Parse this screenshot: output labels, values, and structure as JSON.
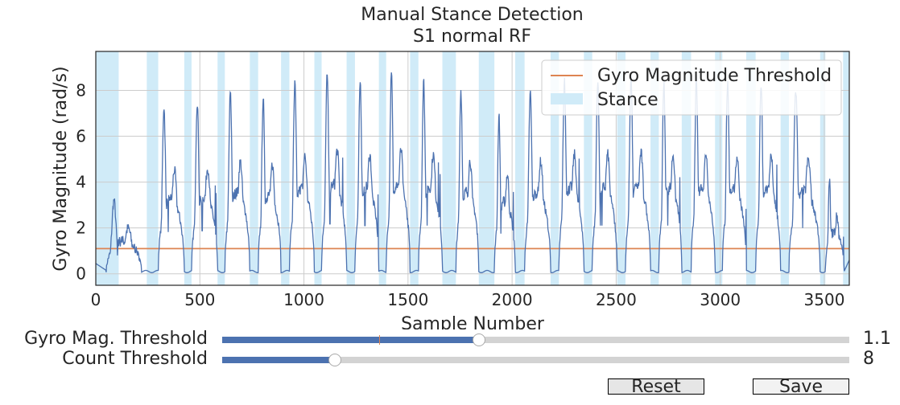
{
  "figure": {
    "title": "Manual Stance Detection",
    "subtitle": "S1  normal  RF"
  },
  "chart_data": {
    "type": "line",
    "xlabel": "Sample Number",
    "ylabel": "Gyro Magnitude (rad/s)",
    "xlim": [
      0,
      3620
    ],
    "ylim": [
      -0.5,
      9.7
    ],
    "xticks": [
      0,
      500,
      1000,
      1500,
      2000,
      2500,
      3000,
      3500
    ],
    "yticks": [
      0,
      2,
      4,
      6,
      8
    ],
    "grid": true,
    "legend": {
      "placement": "top-right",
      "entries": [
        "Gyro Magnitude Threshold",
        "Stance"
      ]
    },
    "colors": {
      "line": "#4c72b0",
      "threshold": "#dd8452",
      "stance": "#d0ebf8",
      "grid": "#cccccc"
    },
    "threshold": 1.1,
    "stance_intervals": [
      [
        0,
        110
      ],
      [
        245,
        300
      ],
      [
        425,
        460
      ],
      [
        585,
        620
      ],
      [
        740,
        780
      ],
      [
        890,
        930
      ],
      [
        1050,
        1085
      ],
      [
        1205,
        1245
      ],
      [
        1360,
        1395
      ],
      [
        1510,
        1550
      ],
      [
        1665,
        1730
      ],
      [
        1840,
        1915
      ],
      [
        2015,
        2060
      ],
      [
        2185,
        2225
      ],
      [
        2345,
        2385
      ],
      [
        2505,
        2545
      ],
      [
        2665,
        2705
      ],
      [
        2815,
        2860
      ],
      [
        2975,
        3010
      ],
      [
        3125,
        3170
      ],
      [
        3290,
        3330
      ],
      [
        3480,
        3505
      ],
      [
        3590,
        3620
      ]
    ],
    "series": [
      {
        "steps": [
          {
            "start": 50,
            "peak": 3.2,
            "width": 170
          },
          {
            "start": 300,
            "peak": 7.3,
            "width": 125
          },
          {
            "start": 460,
            "peak": 7.5,
            "width": 125
          },
          {
            "start": 620,
            "peak": 7.9,
            "width": 120
          },
          {
            "start": 780,
            "peak": 7.7,
            "width": 110
          },
          {
            "start": 930,
            "peak": 8.3,
            "width": 120
          },
          {
            "start": 1085,
            "peak": 8.7,
            "width": 120
          },
          {
            "start": 1245,
            "peak": 8.4,
            "width": 115
          },
          {
            "start": 1395,
            "peak": 8.7,
            "width": 115
          },
          {
            "start": 1550,
            "peak": 8.4,
            "width": 115
          },
          {
            "start": 1730,
            "peak": 8.0,
            "width": 110
          },
          {
            "start": 1915,
            "peak": 7.0,
            "width": 100
          },
          {
            "start": 2060,
            "peak": 7.9,
            "width": 125
          },
          {
            "start": 2225,
            "peak": 8.4,
            "width": 120
          },
          {
            "start": 2385,
            "peak": 8.4,
            "width": 120
          },
          {
            "start": 2545,
            "peak": 8.5,
            "width": 120
          },
          {
            "start": 2705,
            "peak": 8.4,
            "width": 110
          },
          {
            "start": 2860,
            "peak": 8.5,
            "width": 115
          },
          {
            "start": 3010,
            "peak": 8.3,
            "width": 115
          },
          {
            "start": 3170,
            "peak": 8.3,
            "width": 120
          },
          {
            "start": 3330,
            "peak": 8.0,
            "width": 150
          },
          {
            "start": 3505,
            "peak": 4.1,
            "width": 90
          }
        ]
      }
    ]
  },
  "controls": {
    "gyro_slider": {
      "label": "Gyro Mag. Threshold",
      "value": "1.1",
      "fraction": 0.41,
      "initial_fraction": 0.25
    },
    "count_slider": {
      "label": "Count Threshold",
      "value": "8",
      "fraction": 0.18
    },
    "reset_label": "Reset",
    "save_label": "Save"
  }
}
